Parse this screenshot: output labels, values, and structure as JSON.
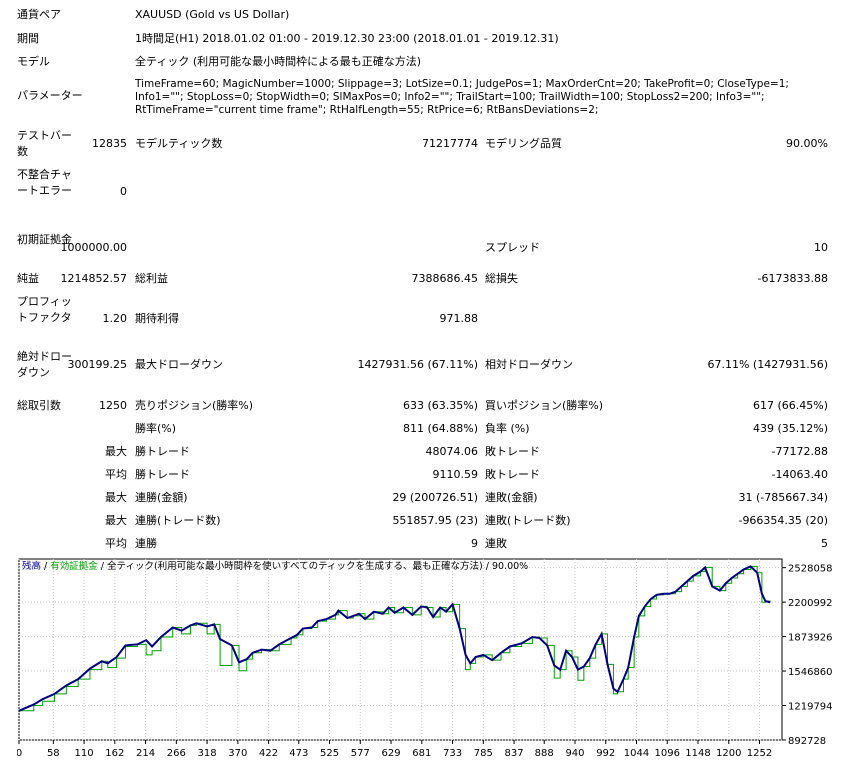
{
  "header": {
    "symbol_label": "通貨ペア",
    "symbol_value": "XAUUSD (Gold vs US Dollar)",
    "period_label": "期間",
    "period_value": "1時間足(H1) 2018.01.02 01:00 - 2019.12.30 23:00 (2018.01.01 - 2019.12.31)",
    "model_label": "モデル",
    "model_value": "全ティック (利用可能な最小時間枠による最も正確な方法)",
    "params_label": "パラメーター",
    "params_value": "TimeFrame=60; MagicNumber=1000; Slippage=3; LotSize=0.1; JudgePos=1; MaxOrderCnt=20; TakeProfit=0; CloseType=1; Info1=\"\"; StopLoss=0; StopWidth=0; SlMaxPos=0; Info2=\"\"; TrailStart=100; TrailWidth=100; StopLoss2=200; Info3=\"\"; RtTimeFrame=\"current time frame\"; RtHalfLength=55; RtPrice=6; RtBansDeviations=2;"
  },
  "stats": {
    "bars_label": "テストバー数",
    "bars_value": "12835",
    "ticks_label": "モデルティック数",
    "ticks_value": "71217774",
    "quality_label": "モデリング品質",
    "quality_value": "90.00%",
    "mismatch_label": "不整合チャートエラー",
    "mismatch_value": "0",
    "deposit_label": "初期証拠金",
    "deposit_value": "1000000.00",
    "spread_label": "スプレッド",
    "spread_value": "10",
    "net_label": "純益",
    "net_value": "1214852.57",
    "gross_profit_label": "総利益",
    "gross_profit_value": "7388686.45",
    "gross_loss_label": "総損失",
    "gross_loss_value": "-6173833.88",
    "pf_label": "プロフィットファクタ",
    "pf_value": "1.20",
    "expected_label": "期待利得",
    "expected_value": "971.88",
    "abs_dd_label": "絶対ドローダウン",
    "abs_dd_value": "300199.25",
    "max_dd_label": "最大ドローダウン",
    "max_dd_value": "1427931.56 (67.11%)",
    "rel_dd_label": "相対ドローダウン",
    "rel_dd_value": "67.11% (1427931.56)",
    "total_trades_label": "総取引数",
    "total_trades_value": "1250",
    "short_label": "売りポジション(勝率%)",
    "short_value": "633 (63.35%)",
    "long_label": "買いポジション(勝率%)",
    "long_value": "617 (66.45%)",
    "win_pct_label": "勝率(%)",
    "win_pct_value": "811 (64.88%)",
    "loss_pct_label": "負率 (%)",
    "loss_pct_value": "439 (35.12%)",
    "max1_prefix": "最大",
    "largest_win_label": "勝トレード",
    "largest_win_value": "48074.06",
    "largest_loss_label": "敗トレード",
    "largest_loss_value": "-77172.88",
    "avg_prefix": "平均",
    "avg_win_label": "勝トレード",
    "avg_win_value": "9110.59",
    "avg_loss_label": "敗トレード",
    "avg_loss_value": "-14063.40",
    "max2_prefix": "最大",
    "max_cons_wins_label": "連勝(金額)",
    "max_cons_wins_value": "29 (200726.51)",
    "max_cons_losses_label": "連敗(金額)",
    "max_cons_losses_value": "31 (-785667.34)",
    "max3_prefix": "最大",
    "max_cons_profit_label": "連勝(トレード数)",
    "max_cons_profit_value": "551857.95 (23)",
    "max_cons_loss_label": "連敗(トレード数)",
    "max_cons_loss_value": "-966354.35 (20)",
    "avg2_prefix": "平均",
    "avg_cons_wins_label": "連勝",
    "avg_cons_wins_value": "9",
    "avg_cons_losses_label": "連敗",
    "avg_cons_losses_value": "5"
  },
  "chart_legend": {
    "balance": "残高",
    "sep1": " / ",
    "equity": "有効証拠金",
    "rest": " / 全ティック(利用可能な最小時間枠を使いすべてのティックを生成する、最も正確な方法) / 90.00%"
  },
  "colors": {
    "balance": "#000080",
    "equity": "#00a000",
    "grid": "#c8c8c8"
  },
  "chart_data": {
    "type": "line",
    "x_ticks": [
      "0",
      "58",
      "110",
      "162",
      "214",
      "266",
      "318",
      "370",
      "422",
      "473",
      "525",
      "577",
      "629",
      "681",
      "733",
      "785",
      "837",
      "888",
      "940",
      "992",
      "1044",
      "1096",
      "1148",
      "1200",
      "1252"
    ],
    "y_ticks": [
      "2528058",
      "2200992",
      "1873926",
      "1546860",
      "1219794",
      "892728"
    ],
    "ylim": [
      892728,
      2610000
    ],
    "xlim": [
      0,
      1290
    ],
    "series": [
      {
        "name": "残高",
        "x": [
          0,
          25,
          40,
          60,
          80,
          100,
          120,
          140,
          150,
          165,
          180,
          200,
          215,
          225,
          240,
          260,
          275,
          290,
          300,
          318,
          330,
          340,
          360,
          372,
          385,
          395,
          410,
          425,
          440,
          460,
          470,
          480,
          495,
          505,
          520,
          535,
          540,
          555,
          565,
          575,
          585,
          600,
          615,
          625,
          635,
          650,
          665,
          680,
          690,
          700,
          712,
          722,
          733,
          745,
          755,
          763,
          772,
          785,
          800,
          815,
          830,
          850,
          868,
          880,
          893,
          905,
          915,
          925,
          935,
          945,
          955,
          965,
          975,
          985,
          995,
          1005,
          1012,
          1022,
          1030,
          1040,
          1048,
          1058,
          1068,
          1078,
          1090,
          1100,
          1110,
          1120,
          1130,
          1140,
          1152,
          1160,
          1172,
          1185,
          1195,
          1205,
          1215,
          1225,
          1237,
          1248,
          1256,
          1262,
          1270
        ],
        "y": [
          1170000,
          1230000,
          1280000,
          1330000,
          1410000,
          1470000,
          1570000,
          1640000,
          1620000,
          1680000,
          1790000,
          1800000,
          1840000,
          1780000,
          1870000,
          1960000,
          1930000,
          1980000,
          2000000,
          1970000,
          1990000,
          1850000,
          1790000,
          1630000,
          1660000,
          1720000,
          1750000,
          1740000,
          1800000,
          1860000,
          1890000,
          1950000,
          1960000,
          2020000,
          2040000,
          2080000,
          2120000,
          2050000,
          2070000,
          2090000,
          2040000,
          2110000,
          2090000,
          2150000,
          2100000,
          2150000,
          2080000,
          2160000,
          2150000,
          2060000,
          2150000,
          2110000,
          2180000,
          1950000,
          1700000,
          1620000,
          1680000,
          1700000,
          1650000,
          1720000,
          1780000,
          1810000,
          1870000,
          1860000,
          1790000,
          1600000,
          1560000,
          1740000,
          1680000,
          1560000,
          1590000,
          1670000,
          1800000,
          1900000,
          1610000,
          1380000,
          1350000,
          1470000,
          1580000,
          1870000,
          2070000,
          2160000,
          2230000,
          2270000,
          2280000,
          2280000,
          2300000,
          2350000,
          2400000,
          2450000,
          2490000,
          2530000,
          2350000,
          2310000,
          2380000,
          2430000,
          2470000,
          2510000,
          2540000,
          2480000,
          2280000,
          2210000,
          2200000
        ]
      },
      {
        "name": "有効証拠金",
        "x": [
          0,
          25,
          40,
          60,
          80,
          100,
          120,
          140,
          150,
          165,
          180,
          200,
          215,
          225,
          240,
          260,
          275,
          290,
          300,
          318,
          330,
          340,
          360,
          372,
          385,
          395,
          410,
          425,
          440,
          460,
          470,
          480,
          495,
          505,
          520,
          535,
          540,
          555,
          565,
          575,
          585,
          600,
          615,
          625,
          635,
          650,
          665,
          680,
          690,
          700,
          712,
          722,
          733,
          745,
          755,
          763,
          772,
          785,
          800,
          815,
          830,
          850,
          868,
          880,
          893,
          905,
          915,
          925,
          935,
          945,
          955,
          965,
          975,
          985,
          995,
          1005,
          1012,
          1022,
          1030,
          1040,
          1048,
          1058,
          1068,
          1078,
          1090,
          1100,
          1110,
          1120,
          1130,
          1140,
          1152,
          1160,
          1172,
          1185,
          1195,
          1205,
          1215,
          1225,
          1237,
          1248,
          1256,
          1262,
          1270
        ],
        "y": [
          1170000,
          1220000,
          1260000,
          1330000,
          1400000,
          1470000,
          1560000,
          1640000,
          1580000,
          1670000,
          1780000,
          1800000,
          1700000,
          1740000,
          1870000,
          1960000,
          1900000,
          1980000,
          2000000,
          1900000,
          1990000,
          1600000,
          1790000,
          1550000,
          1660000,
          1720000,
          1750000,
          1740000,
          1800000,
          1860000,
          1890000,
          1950000,
          1960000,
          2020000,
          2040000,
          2080000,
          2120000,
          2050000,
          2070000,
          2090000,
          2040000,
          2110000,
          2090000,
          2150000,
          2100000,
          2150000,
          2080000,
          2160000,
          2150000,
          2060000,
          2150000,
          2110000,
          2180000,
          1950000,
          1560000,
          1620000,
          1680000,
          1700000,
          1650000,
          1720000,
          1780000,
          1810000,
          1870000,
          1860000,
          1790000,
          1480000,
          1560000,
          1740000,
          1680000,
          1460000,
          1590000,
          1670000,
          1800000,
          1900000,
          1610000,
          1330000,
          1350000,
          1470000,
          1580000,
          1870000,
          2070000,
          2160000,
          2230000,
          2270000,
          2280000,
          2280000,
          2300000,
          2350000,
          2400000,
          2450000,
          2490000,
          2530000,
          2350000,
          2310000,
          2380000,
          2430000,
          2470000,
          2510000,
          2540000,
          2480000,
          2200000,
          2210000,
          2200000
        ]
      }
    ]
  }
}
